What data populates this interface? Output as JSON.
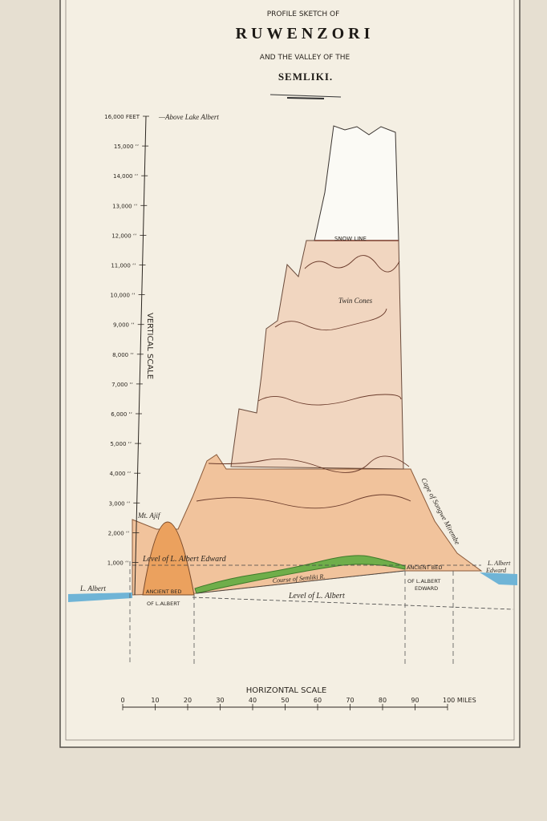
{
  "header": {
    "line1": "PROFILE SKETCH OF",
    "title": "RUWENZORI",
    "line3": "AND THE VALLEY OF THE",
    "subtitle": "SEMLIKI."
  },
  "vertical_scale": {
    "note": "—Above Lake Albert",
    "label": "VERTICAL SCALE",
    "ticks": [
      "16,000 FEET",
      "15,000 ‘‘",
      "14,000 ‘‘",
      "13,000 ‘‘",
      "12,000 ‘‘",
      "11,000 ‘‘",
      "10,000 ‘‘",
      "9,000 ‘‘",
      "8,000 ‘‘",
      "7,000 ‘‘",
      "6,000 ‘‘",
      "5,000 ‘‘",
      "4,000 ‘‘",
      "3,000 ‘‘",
      "2,000 ‘‘",
      "1,000 ‘‘"
    ]
  },
  "labels": {
    "snow_line": "SNOW LINE",
    "twin_cones": "Twin Cones",
    "mt_ajif": "Mt. Ajif",
    "level_albert_edward": "Level of L. Albert Edward",
    "ancient_bed_left": "ANCIENT BED",
    "of_albert": "OF L.ALBERT",
    "course": "Course of Semliki R.",
    "level_albert": "Level of L. Albert",
    "ancient_bed_right": "ANCIENT BED",
    "of_albert_edward_1": "OF L.ALBERT",
    "of_albert_edward_2": "EDWARD",
    "cape": "Cape of Songwe Mirembe",
    "l_albert": "L. Albert",
    "l_albert_edward_1": "L. Albert",
    "l_albert_edward_2": "Edward"
  },
  "horizontal_scale": {
    "label": "HORIZONTAL SCALE",
    "ticks": [
      "0",
      "10",
      "20",
      "30",
      "40",
      "50",
      "60",
      "70",
      "80",
      "90",
      "100 MILES"
    ]
  }
}
